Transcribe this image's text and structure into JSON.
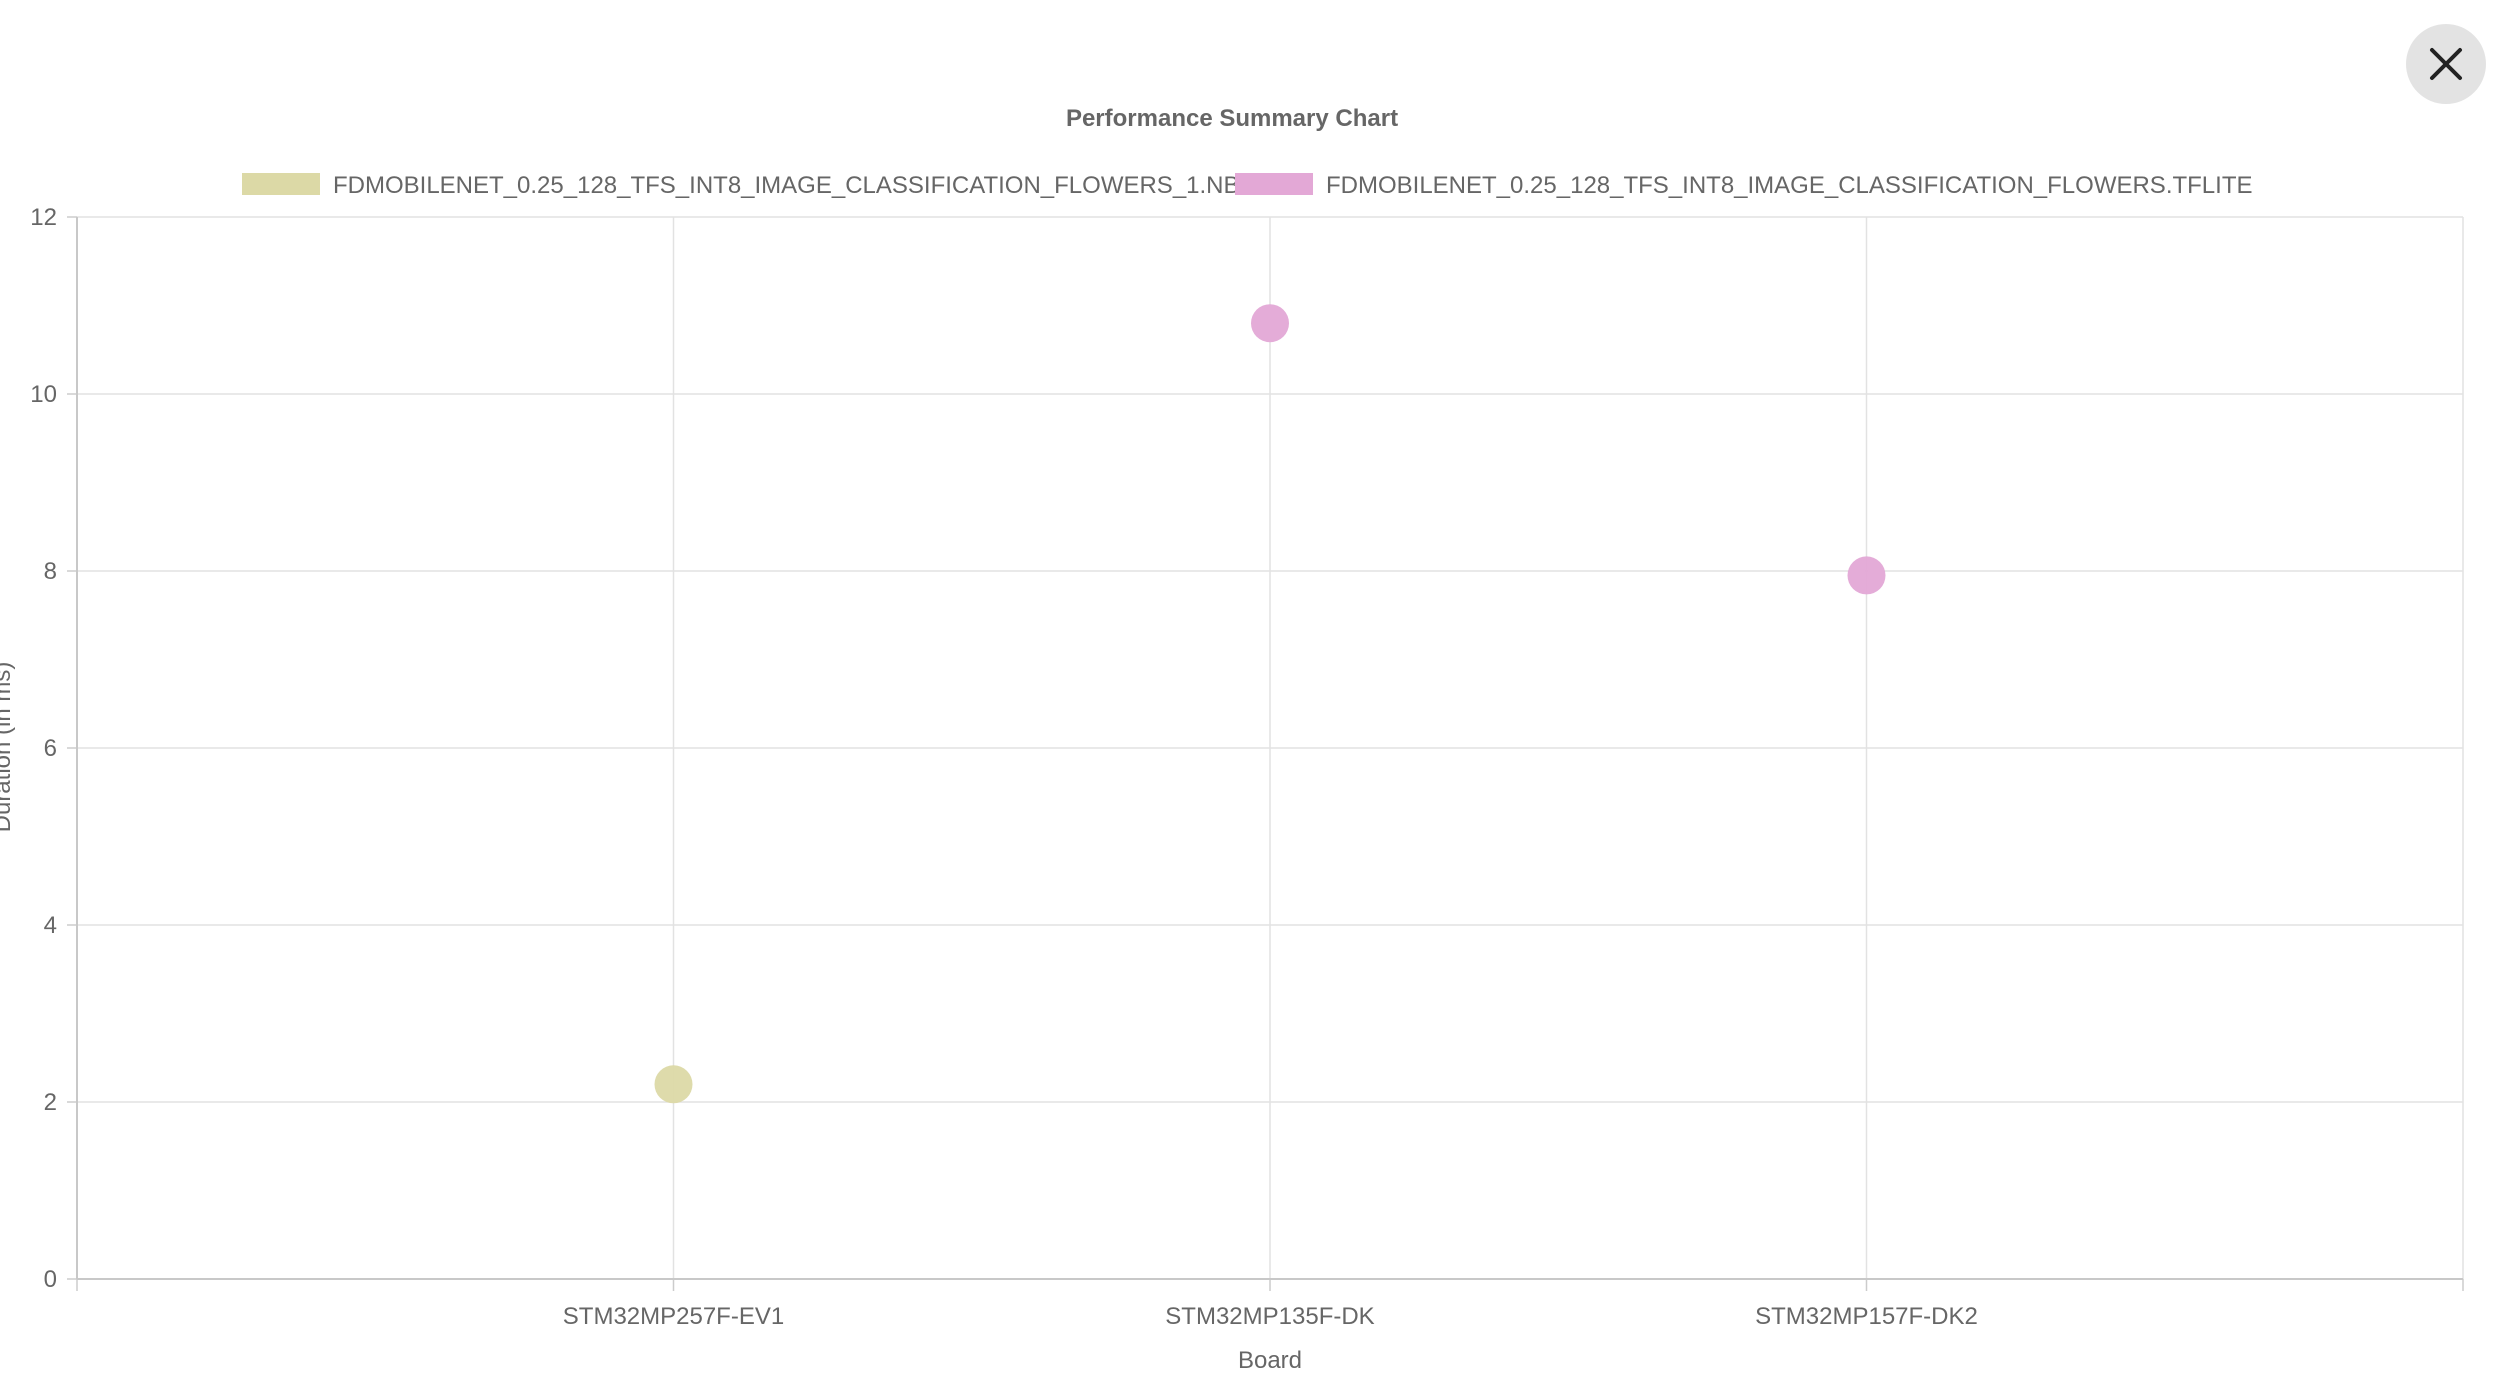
{
  "dialog": {
    "close_icon": "close-icon"
  },
  "chart_data": {
    "type": "scatter",
    "title": "Performance Summary Chart",
    "xlabel": "Board",
    "ylabel": "Duration (in ms)",
    "categories": [
      "STM32MP257F-EV1",
      "STM32MP135F-DK",
      "STM32MP157F-DK2"
    ],
    "ylim": [
      0,
      12
    ],
    "yticks": [
      "0",
      "2",
      "4",
      "6",
      "8",
      "10",
      "12"
    ],
    "grid": true,
    "legend_position": "top",
    "series": [
      {
        "name": "FDMOBILENET_0.25_128_TFS_INT8_IMAGE_CLASSIFICATION_FLOWERS_1.NB",
        "color": "#dcd9a6",
        "points": [
          {
            "x": "STM32MP257F-EV1",
            "y": 2.2
          }
        ]
      },
      {
        "name": "FDMOBILENET_0.25_128_TFS_INT8_IMAGE_CLASSIFICATION_FLOWERS.TFLITE",
        "color": "#e3a8d6",
        "points": [
          {
            "x": "STM32MP135F-DK",
            "y": 10.8
          },
          {
            "x": "STM32MP157F-DK2",
            "y": 7.95
          }
        ]
      }
    ]
  }
}
